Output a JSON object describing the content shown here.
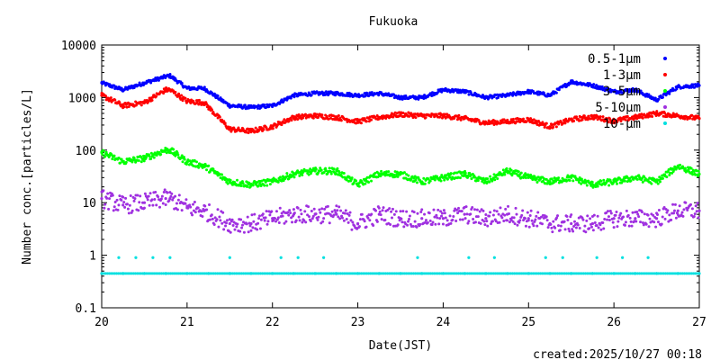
{
  "chart_data": {
    "type": "scatter",
    "title": "Fukuoka",
    "xlabel": "Date(JST)",
    "ylabel": "Number conc.[particles/L]",
    "yscale": "log",
    "xlim": [
      20,
      27
    ],
    "ylim": [
      0.1,
      10000
    ],
    "xticks": [
      "20",
      "21",
      "22",
      "23",
      "24",
      "25",
      "26",
      "27"
    ],
    "yticks": [
      "0.1",
      "1",
      "10",
      "100",
      "1000",
      "10000"
    ],
    "footer": "created:2025/10/27 00:18",
    "legend_position": "top-right",
    "series": [
      {
        "name": "0.5-1μm",
        "color": "#0000ff",
        "x": [
          20.0,
          20.25,
          20.5,
          20.75,
          20.8,
          21.0,
          21.2,
          21.5,
          21.75,
          22.0,
          22.25,
          22.5,
          22.75,
          23.0,
          23.25,
          23.5,
          23.75,
          24.0,
          24.25,
          24.5,
          24.75,
          25.0,
          25.25,
          25.5,
          25.75,
          26.0,
          26.25,
          26.5,
          26.75,
          27.0
        ],
        "values": [
          1900,
          1400,
          1900,
          2500,
          2600,
          1500,
          1500,
          700,
          650,
          700,
          1100,
          1200,
          1200,
          1100,
          1200,
          1000,
          1000,
          1400,
          1300,
          1000,
          1100,
          1300,
          1100,
          2000,
          1700,
          1300,
          1400,
          900,
          1600,
          1700
        ]
      },
      {
        "name": "1-3μm",
        "color": "#ff0000",
        "x": [
          20.0,
          20.25,
          20.5,
          20.75,
          20.8,
          21.0,
          21.2,
          21.5,
          21.75,
          22.0,
          22.25,
          22.5,
          22.75,
          23.0,
          23.25,
          23.5,
          23.75,
          24.0,
          24.25,
          24.5,
          24.75,
          25.0,
          25.25,
          25.5,
          25.75,
          26.0,
          26.25,
          26.5,
          26.75,
          27.0
        ],
        "values": [
          1100,
          700,
          800,
          1400,
          1400,
          850,
          800,
          250,
          230,
          280,
          420,
          450,
          420,
          350,
          420,
          480,
          450,
          450,
          400,
          330,
          350,
          380,
          280,
          380,
          430,
          360,
          420,
          500,
          450,
          400
        ]
      },
      {
        "name": "3-5μm",
        "color": "#00ff00",
        "x": [
          20.0,
          20.25,
          20.5,
          20.75,
          20.8,
          21.0,
          21.2,
          21.5,
          21.75,
          22.0,
          22.25,
          22.5,
          22.75,
          23.0,
          23.25,
          23.5,
          23.75,
          24.0,
          24.25,
          24.5,
          24.75,
          25.0,
          25.25,
          25.5,
          25.75,
          26.0,
          26.25,
          26.5,
          26.75,
          27.0
        ],
        "values": [
          90,
          60,
          70,
          100,
          100,
          60,
          50,
          25,
          22,
          25,
          35,
          40,
          40,
          22,
          35,
          35,
          25,
          30,
          35,
          25,
          40,
          30,
          25,
          30,
          22,
          25,
          30,
          25,
          50,
          35
        ]
      },
      {
        "name": "5-10μm",
        "color": "#9f30e0",
        "x": [
          20.0,
          20.25,
          20.5,
          20.75,
          20.8,
          21.0,
          21.2,
          21.5,
          21.75,
          22.0,
          22.25,
          22.5,
          22.75,
          23.0,
          23.25,
          23.5,
          23.75,
          24.0,
          24.25,
          24.5,
          24.75,
          25.0,
          25.25,
          25.5,
          25.75,
          26.0,
          26.25,
          26.5,
          26.75,
          27.0
        ],
        "values": [
          12,
          9,
          10,
          12,
          12,
          8,
          7,
          4,
          4,
          5,
          6,
          6,
          6,
          4,
          6,
          5,
          5,
          5,
          6,
          5,
          6,
          5,
          4,
          4,
          4,
          5,
          5,
          5,
          7,
          7
        ]
      },
      {
        "name": "10-μm",
        "color": "#00e0e0",
        "x": [
          20.0,
          20.25,
          20.5,
          20.75,
          21.0,
          21.25,
          21.5,
          21.75,
          22.0,
          22.25,
          22.5,
          22.75,
          23.0,
          23.25,
          23.5,
          23.75,
          24.0,
          24.25,
          24.5,
          24.75,
          25.0,
          25.25,
          25.5,
          25.75,
          26.0,
          26.25,
          26.5,
          26.75,
          27.0
        ],
        "values": [
          0.45,
          0.45,
          0.45,
          0.45,
          0.45,
          0.45,
          0.45,
          0.45,
          0.45,
          0.45,
          0.45,
          0.45,
          0.45,
          0.45,
          0.45,
          0.45,
          0.45,
          0.45,
          0.45,
          0.45,
          0.45,
          0.45,
          0.45,
          0.45,
          0.45,
          0.45,
          0.45,
          0.45,
          0.45
        ],
        "outliers_x": [
          20.2,
          20.4,
          20.6,
          20.8,
          21.5,
          22.1,
          22.3,
          22.6,
          23.7,
          24.3,
          24.6,
          25.2,
          25.4,
          25.8,
          26.1,
          26.4
        ],
        "outliers_values": [
          0.9,
          0.9,
          0.9,
          0.9,
          0.9,
          0.9,
          0.9,
          0.9,
          0.9,
          0.9,
          0.9,
          0.9,
          0.9,
          0.9,
          0.9,
          0.9
        ]
      }
    ]
  }
}
